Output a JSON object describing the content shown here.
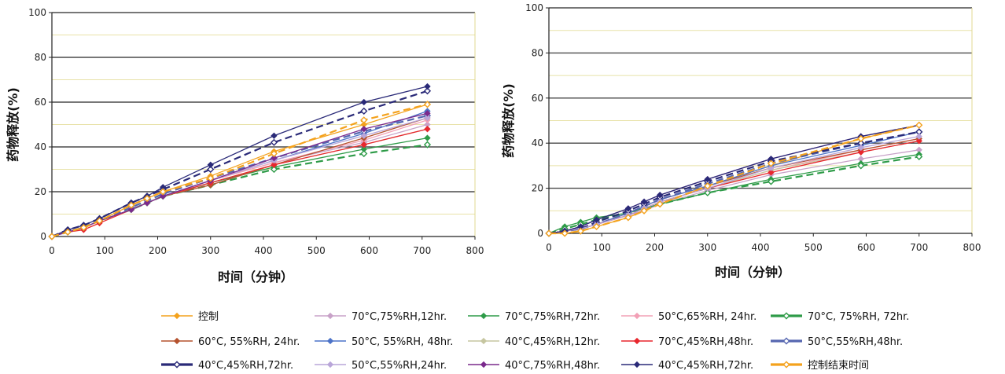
{
  "chart_data": [
    {
      "type": "line",
      "xlabel": "时间（分钟）",
      "ylabel": "药物释放(%)",
      "xlim": [
        0,
        800
      ],
      "ylim": [
        0,
        100
      ],
      "x_ticks": [
        "0",
        "100",
        "200",
        "300",
        "400",
        "500",
        "600",
        "700",
        "800"
      ],
      "y_ticks": [
        "0",
        "20",
        "40",
        "60",
        "80",
        "100"
      ],
      "grid": "horizontal",
      "x": [
        0,
        30,
        60,
        90,
        150,
        180,
        210,
        300,
        420,
        590,
        710
      ],
      "series": [
        {
          "name": "控制",
          "color": "#f4a21d",
          "dashed": false,
          "marker": "diamond-filled",
          "values": [
            0,
            2,
            4,
            7,
            14,
            17,
            20,
            27,
            38,
            50,
            59
          ]
        },
        {
          "name": "70°C,75%RH,12hr.",
          "color": "#c8a2c8",
          "dashed": false,
          "marker": "diamond-filled",
          "values": [
            0,
            2,
            4,
            7,
            12,
            15,
            18,
            25,
            33,
            42,
            50
          ]
        },
        {
          "name": "70°C,75%RH,72hr.",
          "color": "#2e9b48",
          "dashed": false,
          "marker": "diamond-filled",
          "values": [
            0,
            2,
            4,
            7,
            12,
            15,
            18,
            24,
            31,
            39,
            44
          ]
        },
        {
          "name": "50°C,65%RH, 24hr.",
          "color": "#f2a0b6",
          "dashed": false,
          "marker": "diamond-filled",
          "values": [
            0,
            2,
            4,
            7,
            12,
            15,
            18,
            25,
            33,
            43,
            52
          ]
        },
        {
          "name": "70°C, 75%RH, 72hr.",
          "color": "#2e9b48",
          "dashed": true,
          "marker": "diamond-open",
          "values": [
            0,
            2,
            4,
            7,
            12,
            15,
            18,
            23,
            30,
            37,
            41
          ]
        },
        {
          "name": "60°C, 55%RH, 24hr.",
          "color": "#b5522e",
          "dashed": false,
          "marker": "diamond-filled",
          "values": [
            0,
            2,
            4,
            7,
            12,
            15,
            18,
            23,
            32,
            44,
            53
          ]
        },
        {
          "name": "50°C, 55%RH, 48hr.",
          "color": "#4c73c8",
          "dashed": false,
          "marker": "diamond-filled",
          "values": [
            0,
            2,
            4,
            7,
            12,
            15,
            18,
            25,
            34,
            46,
            56
          ]
        },
        {
          "name": "40°C,45%RH,12hr.",
          "color": "#c6c6a0",
          "dashed": false,
          "marker": "diamond-filled",
          "values": [
            0,
            2,
            4,
            7,
            12,
            15,
            18,
            24,
            32,
            41,
            48
          ]
        },
        {
          "name": "70°C,45%RH,48hr.",
          "color": "#e8262d",
          "dashed": false,
          "marker": "diamond-filled",
          "values": [
            0,
            2,
            3,
            6,
            12,
            15,
            18,
            24,
            32,
            41,
            48
          ]
        },
        {
          "name": "50°C,55%RH,48hr.",
          "color": "#5566b0",
          "dashed": true,
          "marker": "diamond-open",
          "values": [
            0,
            2,
            4,
            7,
            13,
            16,
            19,
            26,
            35,
            47,
            54
          ]
        },
        {
          "name": "40°C,45%RH,72hr.",
          "color": "#2a2a78",
          "dashed": true,
          "marker": "diamond-open",
          "values": [
            0,
            3,
            5,
            8,
            15,
            18,
            21,
            30,
            42,
            56,
            65
          ]
        },
        {
          "name": "50°C,55%RH,24hr.",
          "color": "#b9a6d9",
          "dashed": false,
          "marker": "diamond-filled",
          "values": [
            0,
            2,
            4,
            7,
            12,
            15,
            18,
            25,
            34,
            45,
            53
          ]
        },
        {
          "name": "40°C,75%RH,48hr.",
          "color": "#7a2a8c",
          "dashed": false,
          "marker": "diamond-filled",
          "values": [
            0,
            2,
            4,
            7,
            12,
            15,
            18,
            25,
            35,
            48,
            55
          ]
        },
        {
          "name": "40°C,45%RH,72hr.",
          "color": "#2a2a78",
          "dashed": false,
          "marker": "diamond-filled",
          "values": [
            0,
            3,
            5,
            8,
            15,
            18,
            22,
            32,
            45,
            60,
            67
          ]
        },
        {
          "name": "控制结束时间",
          "color": "#f4a21d",
          "dashed": true,
          "marker": "diamond-open",
          "values": [
            0,
            2,
            4,
            7,
            14,
            17,
            20,
            26,
            37,
            52,
            59
          ]
        }
      ]
    },
    {
      "type": "line",
      "xlabel": "时间（分钟）",
      "ylabel": "药物释放(%)",
      "xlim": [
        0,
        800
      ],
      "ylim": [
        0,
        100
      ],
      "x_ticks": [
        "0",
        "100",
        "200",
        "300",
        "400",
        "500",
        "600",
        "700",
        "800"
      ],
      "y_ticks": [
        "0",
        "20",
        "40",
        "60",
        "80",
        "100"
      ],
      "grid": "horizontal",
      "x": [
        0,
        30,
        60,
        90,
        150,
        180,
        210,
        300,
        420,
        590,
        700
      ],
      "series": [
        {
          "name": "控制",
          "color": "#f4a21d",
          "dashed": false,
          "marker": "diamond-filled",
          "values": [
            0,
            0,
            1,
            3,
            7,
            10,
            13,
            21,
            30,
            42,
            48
          ]
        },
        {
          "name": "70°C,75%RH,12hr.",
          "color": "#c8a2c8",
          "dashed": false,
          "marker": "diamond-filled",
          "values": [
            0,
            1,
            2,
            4,
            8,
            10,
            13,
            19,
            26,
            33,
            37
          ]
        },
        {
          "name": "70°C,75%RH,72hr.",
          "color": "#2e9b48",
          "dashed": false,
          "marker": "diamond-filled",
          "values": [
            0,
            3,
            5,
            7,
            9,
            11,
            13,
            18,
            24,
            31,
            35
          ]
        },
        {
          "name": "50°C,65%RH, 24hr.",
          "color": "#f2a0b6",
          "dashed": false,
          "marker": "diamond-filled",
          "values": [
            0,
            1,
            2,
            4,
            8,
            11,
            14,
            20,
            28,
            37,
            42
          ]
        },
        {
          "name": "70°C, 75%RH, 72hr.",
          "color": "#2e9b48",
          "dashed": true,
          "marker": "diamond-open",
          "values": [
            0,
            2,
            4,
            6,
            9,
            11,
            13,
            18,
            23,
            30,
            34
          ]
        },
        {
          "name": "60°C, 55%RH, 24hr.",
          "color": "#b5522e",
          "dashed": false,
          "marker": "diamond-filled",
          "values": [
            0,
            1,
            2,
            4,
            9,
            12,
            15,
            21,
            29,
            37,
            42
          ]
        },
        {
          "name": "50°C, 55%RH, 48hr.",
          "color": "#4c73c8",
          "dashed": false,
          "marker": "diamond-filled",
          "values": [
            0,
            1,
            2,
            4,
            9,
            12,
            15,
            21,
            30,
            39,
            45
          ]
        },
        {
          "name": "40°C,45%RH,12hr.",
          "color": "#c6c6a0",
          "dashed": false,
          "marker": "diamond-filled",
          "values": [
            0,
            1,
            2,
            4,
            8,
            11,
            14,
            20,
            28,
            36,
            41
          ]
        },
        {
          "name": "70°C,45%RH,48hr.",
          "color": "#e8262d",
          "dashed": false,
          "marker": "diamond-filled",
          "values": [
            0,
            1,
            2,
            4,
            8,
            11,
            14,
            20,
            27,
            36,
            41
          ]
        },
        {
          "name": "50°C,55%RH,48hr.",
          "color": "#5566b0",
          "dashed": true,
          "marker": "diamond-open",
          "values": [
            0,
            1,
            2,
            4,
            9,
            12,
            15,
            22,
            31,
            40,
            45
          ]
        },
        {
          "name": "40°C,45%RH,72hr.",
          "color": "#2a2a78",
          "dashed": true,
          "marker": "diamond-open",
          "values": [
            0,
            1,
            2,
            5,
            10,
            13,
            16,
            23,
            32,
            40,
            45
          ]
        },
        {
          "name": "50°C,55%RH,24hr.",
          "color": "#b9a6d9",
          "dashed": false,
          "marker": "diamond-filled",
          "values": [
            0,
            1,
            2,
            4,
            8,
            11,
            14,
            20,
            29,
            38,
            43
          ]
        },
        {
          "name": "40°C,75%RH,48hr.",
          "color": "#7a2a8c",
          "dashed": false,
          "marker": "diamond-filled",
          "values": [
            0,
            1,
            3,
            6,
            11,
            14,
            17,
            24,
            33,
            43,
            48
          ]
        },
        {
          "name": "40°C,45%RH,72hr.",
          "color": "#2a2a78",
          "dashed": false,
          "marker": "diamond-filled",
          "values": [
            0,
            1,
            3,
            6,
            11,
            14,
            17,
            24,
            33,
            43,
            48
          ]
        },
        {
          "name": "控制结束时间",
          "color": "#f4a21d",
          "dashed": true,
          "marker": "diamond-open",
          "values": [
            0,
            0,
            1,
            3,
            7,
            10,
            13,
            21,
            31,
            42,
            48
          ]
        }
      ]
    }
  ]
}
